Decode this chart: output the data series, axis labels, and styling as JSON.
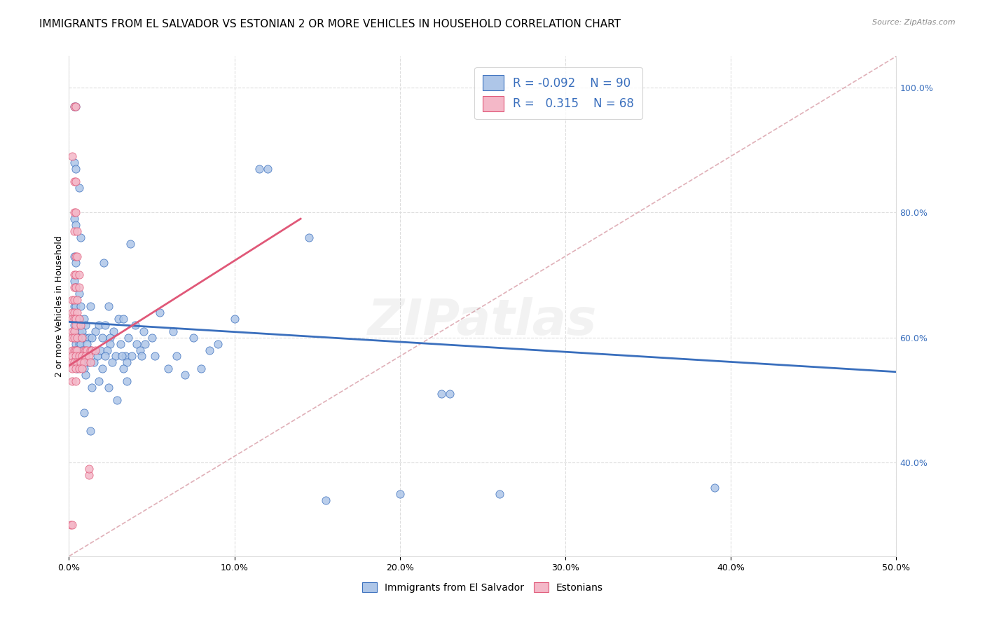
{
  "title": "IMMIGRANTS FROM EL SALVADOR VS ESTONIAN 2 OR MORE VEHICLES IN HOUSEHOLD CORRELATION CHART",
  "source": "Source: ZipAtlas.com",
  "ylabel": "2 or more Vehicles in Household",
  "x_min": 0.0,
  "x_max": 0.5,
  "y_min": 0.25,
  "y_max": 1.05,
  "x_ticks": [
    0.0,
    0.1,
    0.2,
    0.3,
    0.4,
    0.5
  ],
  "x_tick_labels": [
    "0.0%",
    "10.0%",
    "20.0%",
    "30.0%",
    "40.0%",
    "50.0%"
  ],
  "y_ticks": [
    0.4,
    0.6,
    0.8,
    1.0
  ],
  "y_tick_labels": [
    "40.0%",
    "60.0%",
    "80.0%",
    "100.0%"
  ],
  "blue_color": "#aec6e8",
  "pink_color": "#f4b8c8",
  "blue_line_color": "#3a6fbd",
  "pink_line_color": "#e05878",
  "dashed_line_color": "#e0b0b8",
  "watermark": "ZIPatlas",
  "blue_scatter": [
    [
      0.003,
      0.97
    ],
    [
      0.004,
      0.97
    ],
    [
      0.003,
      0.88
    ],
    [
      0.004,
      0.87
    ],
    [
      0.006,
      0.84
    ],
    [
      0.003,
      0.79
    ],
    [
      0.004,
      0.78
    ],
    [
      0.007,
      0.76
    ],
    [
      0.003,
      0.73
    ],
    [
      0.004,
      0.72
    ],
    [
      0.021,
      0.72
    ],
    [
      0.003,
      0.69
    ],
    [
      0.004,
      0.68
    ],
    [
      0.006,
      0.67
    ],
    [
      0.003,
      0.65
    ],
    [
      0.004,
      0.65
    ],
    [
      0.007,
      0.65
    ],
    [
      0.013,
      0.65
    ],
    [
      0.024,
      0.65
    ],
    [
      0.003,
      0.63
    ],
    [
      0.004,
      0.63
    ],
    [
      0.006,
      0.63
    ],
    [
      0.009,
      0.63
    ],
    [
      0.03,
      0.63
    ],
    [
      0.033,
      0.63
    ],
    [
      0.003,
      0.62
    ],
    [
      0.005,
      0.62
    ],
    [
      0.007,
      0.62
    ],
    [
      0.01,
      0.62
    ],
    [
      0.018,
      0.62
    ],
    [
      0.022,
      0.62
    ],
    [
      0.04,
      0.62
    ],
    [
      0.003,
      0.61
    ],
    [
      0.006,
      0.61
    ],
    [
      0.008,
      0.61
    ],
    [
      0.016,
      0.61
    ],
    [
      0.027,
      0.61
    ],
    [
      0.045,
      0.61
    ],
    [
      0.004,
      0.6
    ],
    [
      0.005,
      0.6
    ],
    [
      0.009,
      0.6
    ],
    [
      0.01,
      0.6
    ],
    [
      0.012,
      0.6
    ],
    [
      0.014,
      0.6
    ],
    [
      0.02,
      0.6
    ],
    [
      0.025,
      0.6
    ],
    [
      0.036,
      0.6
    ],
    [
      0.05,
      0.6
    ],
    [
      0.004,
      0.59
    ],
    [
      0.006,
      0.59
    ],
    [
      0.007,
      0.59
    ],
    [
      0.011,
      0.59
    ],
    [
      0.025,
      0.59
    ],
    [
      0.031,
      0.59
    ],
    [
      0.041,
      0.59
    ],
    [
      0.046,
      0.59
    ],
    [
      0.005,
      0.58
    ],
    [
      0.008,
      0.58
    ],
    [
      0.013,
      0.58
    ],
    [
      0.017,
      0.57
    ],
    [
      0.019,
      0.58
    ],
    [
      0.023,
      0.58
    ],
    [
      0.034,
      0.57
    ],
    [
      0.043,
      0.58
    ],
    [
      0.005,
      0.57
    ],
    [
      0.007,
      0.57
    ],
    [
      0.01,
      0.57
    ],
    [
      0.022,
      0.57
    ],
    [
      0.028,
      0.57
    ],
    [
      0.032,
      0.57
    ],
    [
      0.038,
      0.57
    ],
    [
      0.044,
      0.57
    ],
    [
      0.052,
      0.57
    ],
    [
      0.065,
      0.57
    ],
    [
      0.006,
      0.56
    ],
    [
      0.008,
      0.56
    ],
    [
      0.012,
      0.56
    ],
    [
      0.015,
      0.56
    ],
    [
      0.026,
      0.56
    ],
    [
      0.035,
      0.56
    ],
    [
      0.005,
      0.55
    ],
    [
      0.009,
      0.55
    ],
    [
      0.02,
      0.55
    ],
    [
      0.033,
      0.55
    ],
    [
      0.06,
      0.55
    ],
    [
      0.08,
      0.55
    ],
    [
      0.01,
      0.54
    ],
    [
      0.018,
      0.53
    ],
    [
      0.024,
      0.52
    ],
    [
      0.029,
      0.5
    ],
    [
      0.035,
      0.53
    ],
    [
      0.009,
      0.48
    ],
    [
      0.013,
      0.45
    ],
    [
      0.014,
      0.52
    ],
    [
      0.037,
      0.75
    ],
    [
      0.055,
      0.64
    ],
    [
      0.063,
      0.61
    ],
    [
      0.07,
      0.54
    ],
    [
      0.075,
      0.6
    ],
    [
      0.085,
      0.58
    ],
    [
      0.09,
      0.59
    ],
    [
      0.1,
      0.63
    ],
    [
      0.115,
      0.87
    ],
    [
      0.12,
      0.87
    ],
    [
      0.145,
      0.76
    ],
    [
      0.155,
      0.34
    ],
    [
      0.2,
      0.35
    ],
    [
      0.225,
      0.51
    ],
    [
      0.23,
      0.51
    ],
    [
      0.26,
      0.35
    ],
    [
      0.39,
      0.36
    ]
  ],
  "pink_scatter": [
    [
      0.003,
      0.97
    ],
    [
      0.004,
      0.97
    ],
    [
      0.002,
      0.89
    ],
    [
      0.003,
      0.85
    ],
    [
      0.004,
      0.85
    ],
    [
      0.003,
      0.8
    ],
    [
      0.004,
      0.8
    ],
    [
      0.003,
      0.77
    ],
    [
      0.005,
      0.77
    ],
    [
      0.004,
      0.73
    ],
    [
      0.005,
      0.73
    ],
    [
      0.003,
      0.7
    ],
    [
      0.004,
      0.7
    ],
    [
      0.006,
      0.7
    ],
    [
      0.003,
      0.68
    ],
    [
      0.004,
      0.68
    ],
    [
      0.006,
      0.68
    ],
    [
      0.002,
      0.66
    ],
    [
      0.003,
      0.66
    ],
    [
      0.005,
      0.66
    ],
    [
      0.002,
      0.64
    ],
    [
      0.003,
      0.64
    ],
    [
      0.005,
      0.64
    ],
    [
      0.002,
      0.63
    ],
    [
      0.003,
      0.63
    ],
    [
      0.004,
      0.63
    ],
    [
      0.006,
      0.63
    ],
    [
      0.002,
      0.61
    ],
    [
      0.003,
      0.61
    ],
    [
      0.004,
      0.62
    ],
    [
      0.007,
      0.62
    ],
    [
      0.002,
      0.6
    ],
    [
      0.003,
      0.6
    ],
    [
      0.005,
      0.6
    ],
    [
      0.008,
      0.6
    ],
    [
      0.002,
      0.58
    ],
    [
      0.003,
      0.58
    ],
    [
      0.004,
      0.58
    ],
    [
      0.005,
      0.58
    ],
    [
      0.009,
      0.58
    ],
    [
      0.01,
      0.58
    ],
    [
      0.011,
      0.58
    ],
    [
      0.013,
      0.58
    ],
    [
      0.014,
      0.58
    ],
    [
      0.016,
      0.58
    ],
    [
      0.002,
      0.57
    ],
    [
      0.004,
      0.57
    ],
    [
      0.006,
      0.57
    ],
    [
      0.008,
      0.57
    ],
    [
      0.01,
      0.57
    ],
    [
      0.012,
      0.57
    ],
    [
      0.002,
      0.56
    ],
    [
      0.003,
      0.56
    ],
    [
      0.005,
      0.56
    ],
    [
      0.007,
      0.56
    ],
    [
      0.009,
      0.56
    ],
    [
      0.013,
      0.56
    ],
    [
      0.002,
      0.55
    ],
    [
      0.004,
      0.55
    ],
    [
      0.006,
      0.55
    ],
    [
      0.008,
      0.55
    ],
    [
      0.002,
      0.53
    ],
    [
      0.004,
      0.53
    ],
    [
      0.012,
      0.38
    ],
    [
      0.012,
      0.39
    ],
    [
      0.001,
      0.3
    ],
    [
      0.002,
      0.3
    ]
  ],
  "blue_line_x": [
    0.0,
    0.5
  ],
  "blue_line_y": [
    0.625,
    0.545
  ],
  "pink_line_x": [
    0.0,
    0.14
  ],
  "pink_line_y": [
    0.555,
    0.79
  ],
  "diag_line_x": [
    0.0,
    0.5
  ],
  "diag_line_y": [
    0.25,
    1.05
  ],
  "title_fontsize": 11,
  "axis_tick_fontsize": 9,
  "watermark_fontsize": 52,
  "watermark_alpha": 0.1
}
